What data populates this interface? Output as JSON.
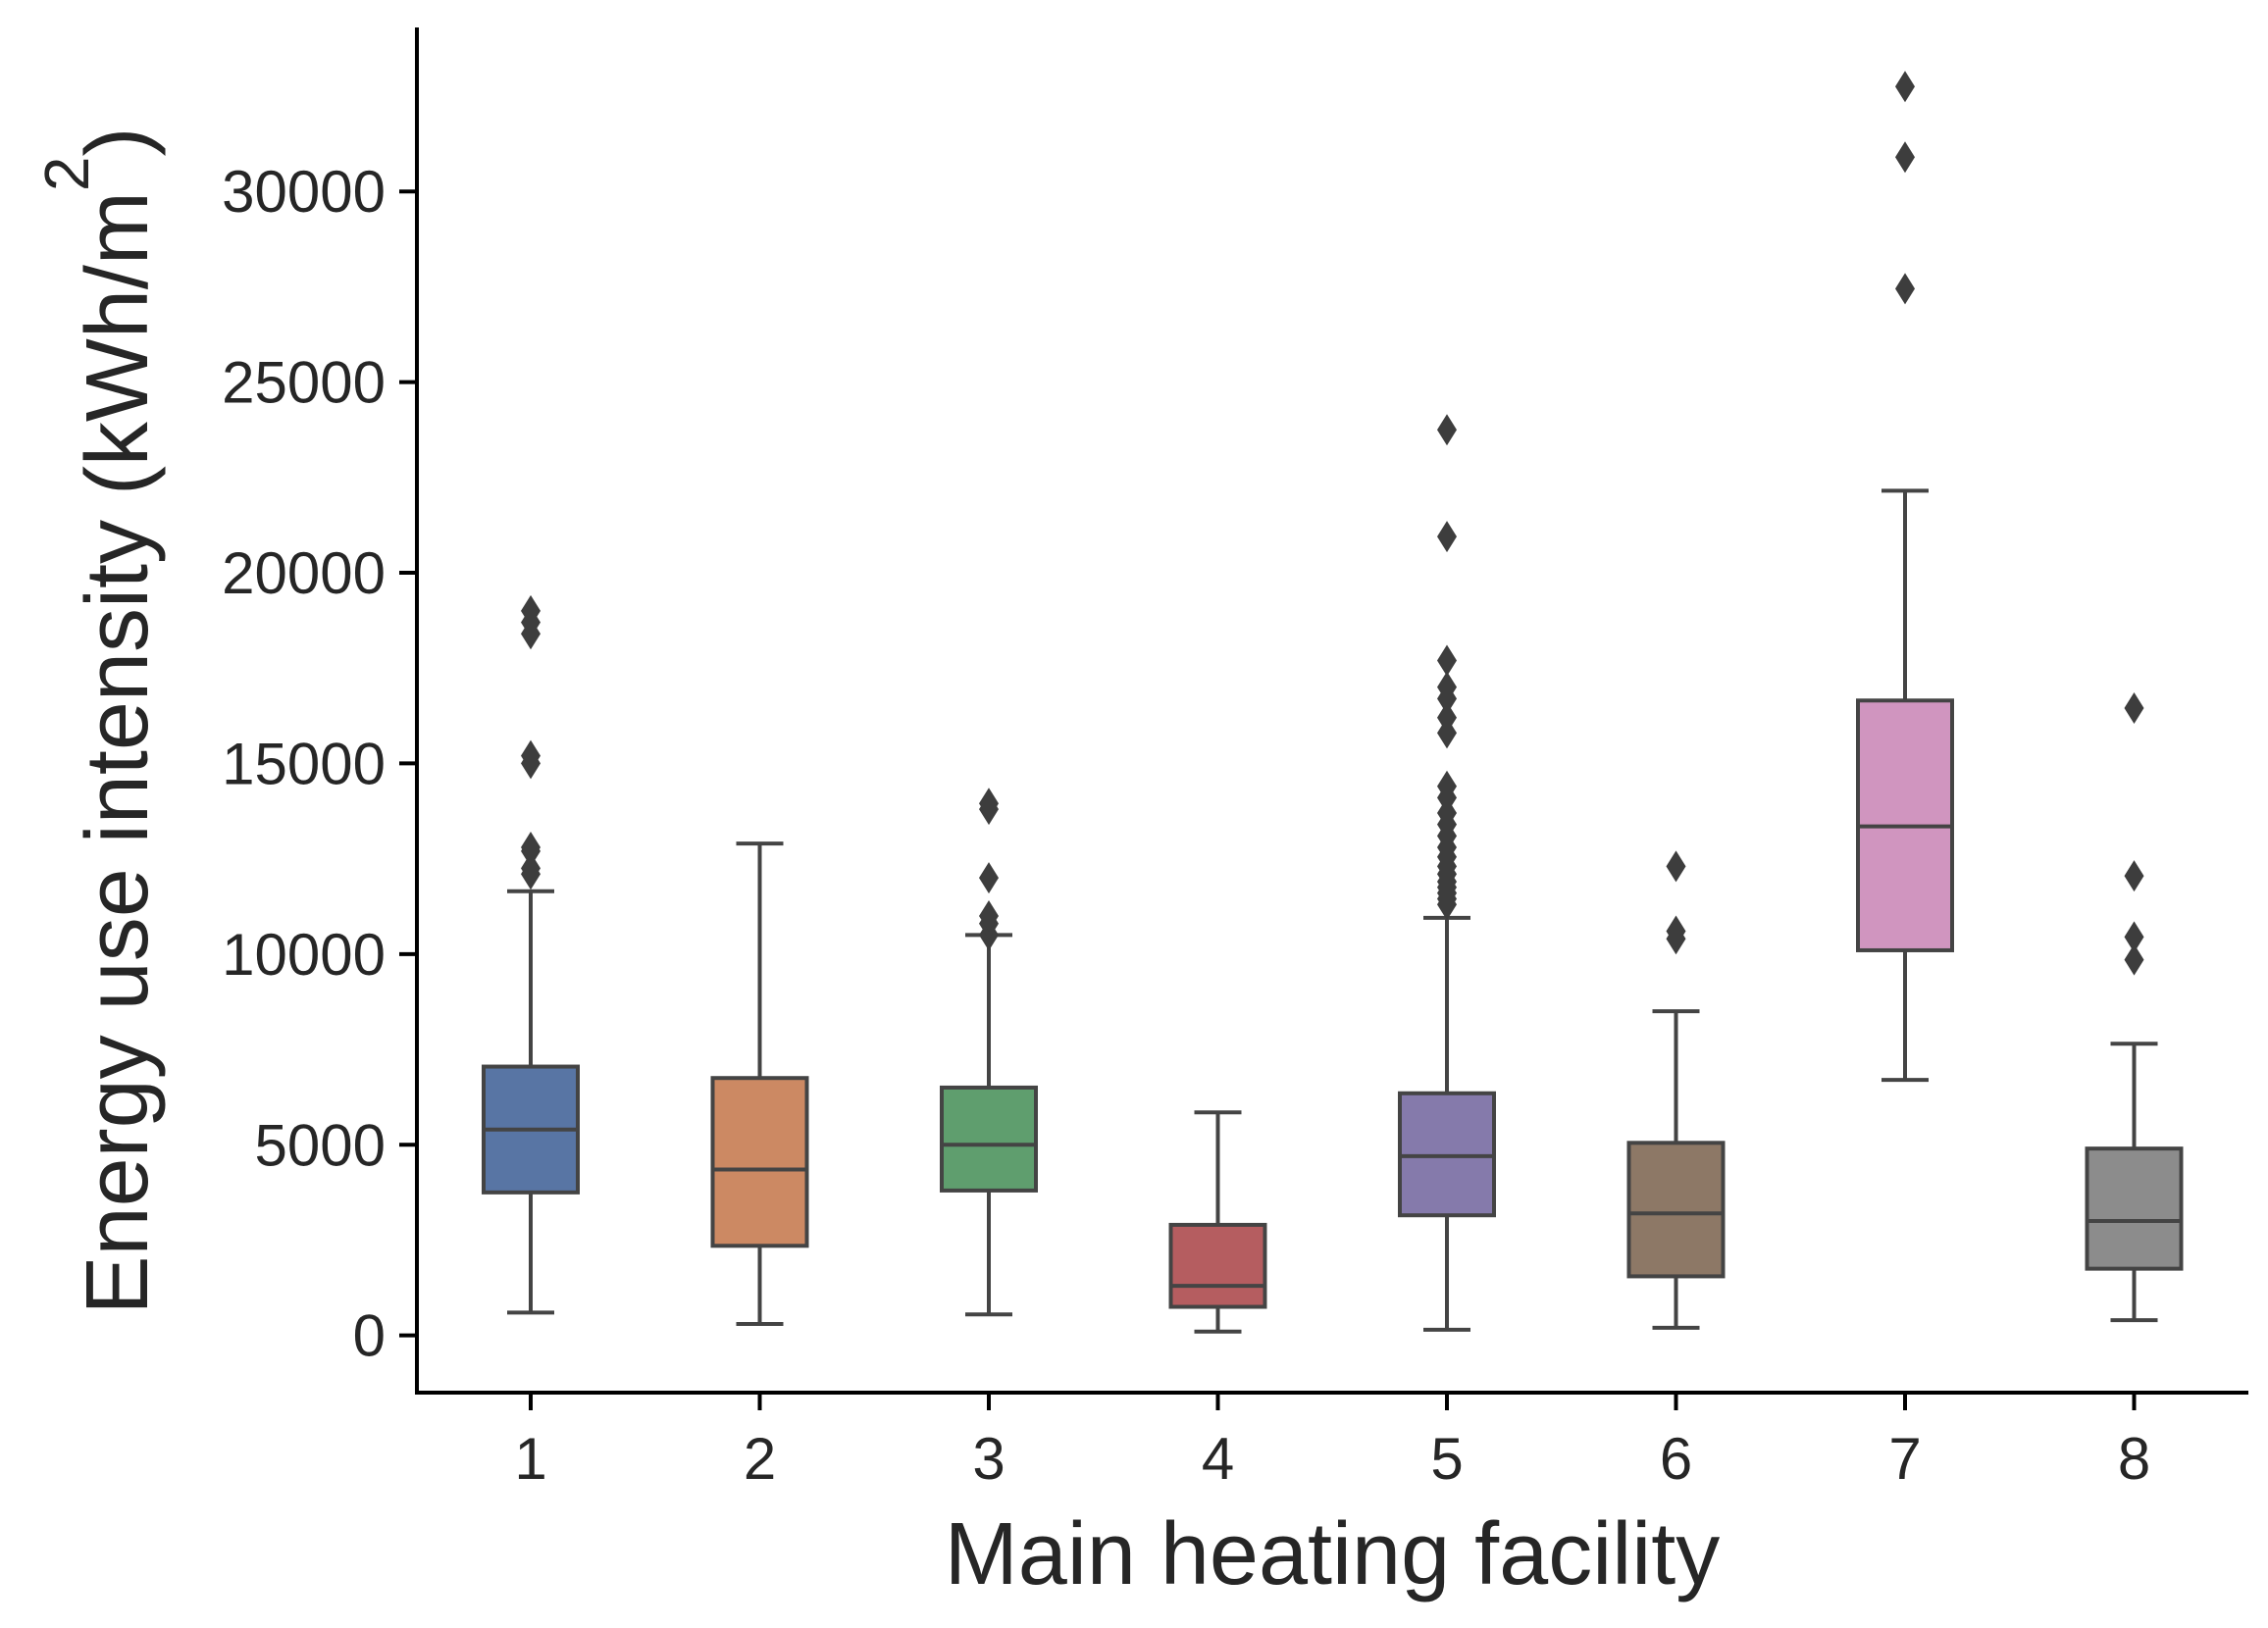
{
  "chart_data": {
    "type": "box",
    "xlabel": "Main heating facility",
    "ylabel": "Energy use intensity (kWh/m",
    "ylabel_superscript": "2",
    "ylabel_close": ")",
    "categories": [
      "1",
      "2",
      "3",
      "4",
      "5",
      "6",
      "7",
      "8"
    ],
    "ylim": [
      -1500,
      34300
    ],
    "yticks": [
      0,
      5000,
      10000,
      15000,
      20000,
      25000,
      30000
    ],
    "grid": false,
    "boxes": [
      {
        "category": "1",
        "color": "#5875a4",
        "whisker_low": 600,
        "q1": 3750,
        "median": 5400,
        "q3": 7050,
        "whisker_high": 11650,
        "outliers": [
          12100,
          12250,
          12700,
          12800,
          15000,
          15200,
          18400,
          18700,
          19000
        ]
      },
      {
        "category": "2",
        "color": "#cc8963",
        "whisker_low": 300,
        "q1": 2350,
        "median": 4350,
        "q3": 6750,
        "whisker_high": 12900,
        "outliers": []
      },
      {
        "category": "3",
        "color": "#5f9e6e",
        "whisker_low": 550,
        "q1": 3800,
        "median": 5000,
        "q3": 6500,
        "whisker_high": 10500,
        "outliers": [
          10500,
          10800,
          11000,
          12000,
          13800,
          13950
        ]
      },
      {
        "category": "4",
        "color": "#b55d60",
        "whisker_low": 100,
        "q1": 750,
        "median": 1300,
        "q3": 2900,
        "whisker_high": 5850,
        "outliers": []
      },
      {
        "category": "5",
        "color": "#857aab",
        "whisker_low": 150,
        "q1": 3150,
        "median": 4700,
        "q3": 6350,
        "whisker_high": 10950,
        "outliers": [
          11300,
          11450,
          11600,
          11750,
          11900,
          12100,
          12300,
          12550,
          12800,
          13100,
          13400,
          13700,
          14100,
          14400,
          15800,
          16200,
          16700,
          17000,
          17700,
          20950,
          23750
        ]
      },
      {
        "category": "6",
        "color": "#8d7866",
        "whisker_low": 200,
        "q1": 1550,
        "median": 3200,
        "q3": 5050,
        "whisker_high": 8500,
        "outliers": [
          10400,
          10600,
          12300
        ]
      },
      {
        "category": "7",
        "color": "#d095bf",
        "whisker_low": 6700,
        "q1": 10100,
        "median": 13350,
        "q3": 16650,
        "whisker_high": 22150,
        "outliers": [
          27450,
          30900,
          32750
        ]
      },
      {
        "category": "8",
        "color": "#8c8c8c",
        "whisker_low": 400,
        "q1": 1750,
        "median": 3000,
        "q3": 4900,
        "whisker_high": 7650,
        "outliers": [
          9850,
          10450,
          12050,
          16450
        ]
      }
    ]
  }
}
